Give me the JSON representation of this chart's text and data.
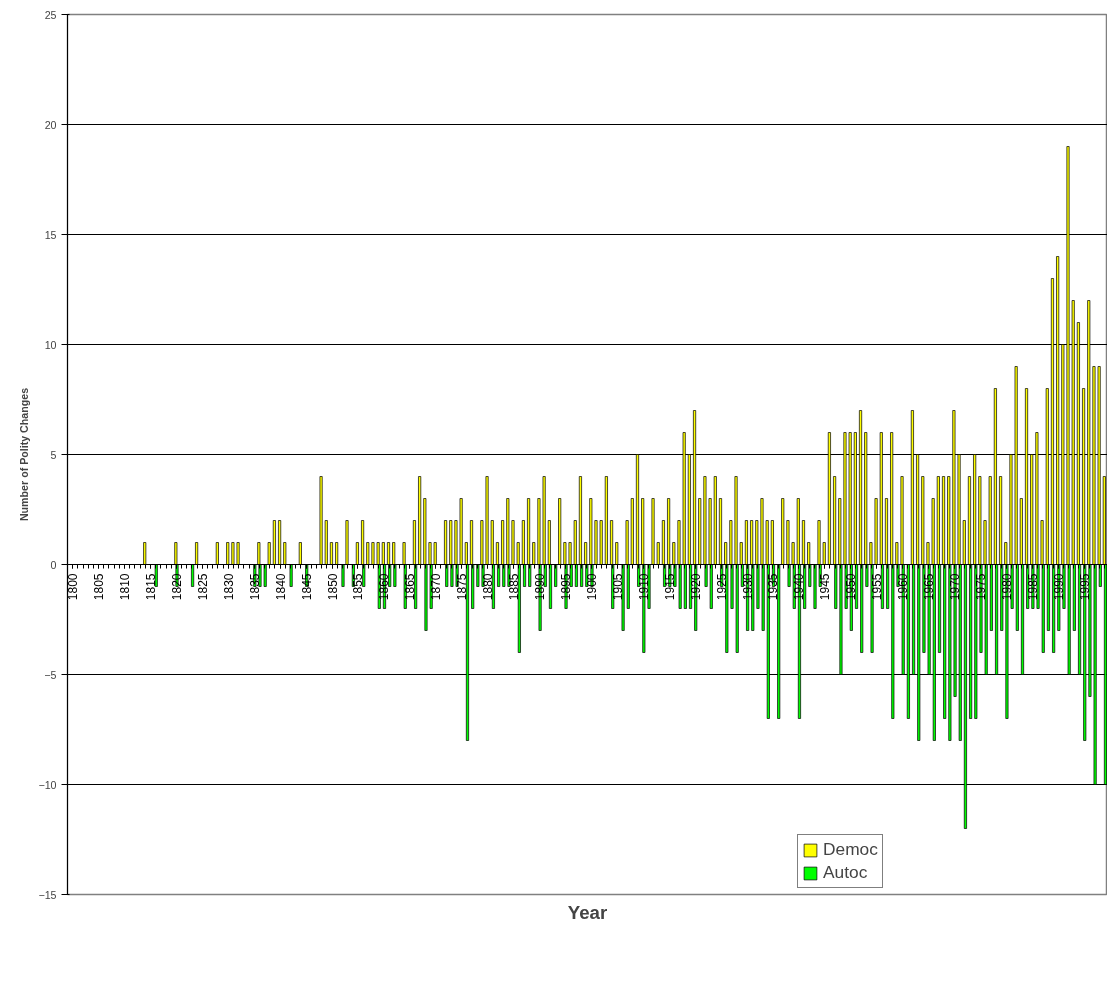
{
  "chart_data": {
    "type": "bar",
    "xlabel": "Year",
    "ylabel": "Number of Polity Changes",
    "xlim": [
      1799,
      1999.5
    ],
    "xticks": [
      1800,
      1805,
      1810,
      1815,
      1820,
      1825,
      1830,
      1835,
      1840,
      1845,
      1850,
      1855,
      1860,
      1865,
      1870,
      1875,
      1880,
      1885,
      1890,
      1895,
      1900,
      1905,
      1910,
      1915,
      1920,
      1925,
      1930,
      1935,
      1940,
      1945,
      1950,
      1955,
      1960,
      1965,
      1970,
      1975,
      1980,
      1985,
      1990,
      1995
    ],
    "ylim": [
      -15,
      25
    ],
    "yticks": [
      -15,
      -10,
      -5,
      0,
      5,
      10,
      15,
      20,
      25
    ],
    "grid": "y",
    "legend": "bottom",
    "series": [
      {
        "name": "Democ",
        "color": "#ffff00",
        "x": [
          1814,
          1820,
          1824,
          1828,
          1830,
          1831,
          1832,
          1836,
          1838,
          1839,
          1840,
          1841,
          1844,
          1848,
          1849,
          1850,
          1851,
          1853,
          1855,
          1856,
          1857,
          1858,
          1859,
          1860,
          1861,
          1862,
          1864,
          1866,
          1867,
          1868,
          1869,
          1870,
          1872,
          1873,
          1874,
          1875,
          1876,
          1877,
          1879,
          1880,
          1881,
          1882,
          1883,
          1884,
          1885,
          1886,
          1887,
          1888,
          1889,
          1890,
          1891,
          1892,
          1894,
          1895,
          1896,
          1897,
          1898,
          1899,
          1900,
          1901,
          1902,
          1903,
          1904,
          1905,
          1907,
          1908,
          1909,
          1910,
          1912,
          1913,
          1914,
          1915,
          1916,
          1917,
          1918,
          1919,
          1920,
          1921,
          1922,
          1923,
          1924,
          1925,
          1926,
          1927,
          1928,
          1929,
          1930,
          1931,
          1932,
          1933,
          1934,
          1935,
          1937,
          1938,
          1939,
          1940,
          1941,
          1942,
          1944,
          1945,
          1946,
          1947,
          1948,
          1949,
          1950,
          1951,
          1952,
          1953,
          1954,
          1955,
          1956,
          1957,
          1958,
          1959,
          1960,
          1962,
          1963,
          1964,
          1965,
          1966,
          1967,
          1968,
          1969,
          1970,
          1971,
          1972,
          1973,
          1974,
          1975,
          1976,
          1977,
          1978,
          1979,
          1980,
          1981,
          1982,
          1983,
          1984,
          1985,
          1986,
          1987,
          1988,
          1989,
          1990,
          1991,
          1992,
          1993,
          1994,
          1995,
          1996,
          1997,
          1998,
          1999
        ],
        "values": [
          1,
          1,
          1,
          1,
          1,
          1,
          1,
          1,
          1,
          2,
          2,
          1,
          1,
          4,
          2,
          1,
          1,
          2,
          1,
          2,
          1,
          1,
          1,
          1,
          1,
          1,
          1,
          2,
          4,
          3,
          1,
          1,
          2,
          2,
          2,
          3,
          1,
          2,
          2,
          4,
          2,
          1,
          2,
          3,
          2,
          1,
          2,
          3,
          1,
          3,
          4,
          2,
          3,
          1,
          1,
          2,
          4,
          1,
          3,
          2,
          2,
          4,
          2,
          1,
          2,
          3,
          5,
          3,
          3,
          1,
          2,
          3,
          1,
          2,
          6,
          5,
          7,
          3,
          4,
          3,
          4,
          3,
          1,
          2,
          4,
          1,
          2,
          2,
          2,
          3,
          2,
          2,
          3,
          2,
          1,
          3,
          2,
          1,
          2,
          1,
          6,
          4,
          3,
          6,
          6,
          6,
          7,
          6,
          1,
          3,
          6,
          3,
          6,
          1,
          4,
          7,
          5,
          4,
          1,
          3,
          4,
          4,
          4,
          7,
          5,
          2,
          4,
          5,
          4,
          2,
          4,
          8,
          4,
          1,
          5,
          9,
          3,
          8,
          5,
          6,
          2,
          8,
          13,
          14,
          10,
          19,
          12,
          11,
          8,
          12,
          9,
          9,
          4
        ]
      },
      {
        "name": "Autoc",
        "color": "#00ff00",
        "x": [
          1816,
          1820,
          1823,
          1835,
          1836,
          1837,
          1842,
          1845,
          1852,
          1854,
          1856,
          1859,
          1860,
          1861,
          1862,
          1864,
          1866,
          1868,
          1869,
          1872,
          1873,
          1874,
          1876,
          1877,
          1878,
          1879,
          1881,
          1882,
          1883,
          1884,
          1886,
          1887,
          1888,
          1890,
          1891,
          1892,
          1893,
          1895,
          1896,
          1897,
          1898,
          1899,
          1900,
          1904,
          1906,
          1907,
          1909,
          1910,
          1911,
          1914,
          1915,
          1916,
          1917,
          1918,
          1919,
          1920,
          1922,
          1923,
          1925,
          1926,
          1927,
          1928,
          1929,
          1930,
          1931,
          1932,
          1933,
          1934,
          1935,
          1936,
          1938,
          1939,
          1940,
          1941,
          1942,
          1943,
          1944,
          1947,
          1948,
          1949,
          1950,
          1951,
          1952,
          1953,
          1954,
          1956,
          1957,
          1958,
          1959,
          1960,
          1961,
          1962,
          1963,
          1964,
          1965,
          1966,
          1967,
          1968,
          1969,
          1970,
          1971,
          1972,
          1973,
          1974,
          1975,
          1976,
          1977,
          1978,
          1979,
          1980,
          1981,
          1982,
          1983,
          1984,
          1985,
          1986,
          1987,
          1988,
          1989,
          1990,
          1991,
          1992,
          1993,
          1994,
          1995,
          1996,
          1997,
          1998,
          1999
        ],
        "values": [
          -1,
          -1,
          -1,
          -1,
          -1,
          -1,
          -1,
          -1,
          -1,
          -1,
          -1,
          -2,
          -2,
          -1,
          -1,
          -2,
          -2,
          -3,
          -2,
          -1,
          -1,
          -1,
          -8,
          -2,
          -1,
          -1,
          -2,
          -1,
          -1,
          -1,
          -4,
          -1,
          -1,
          -3,
          -1,
          -2,
          -1,
          -2,
          -1,
          -1,
          -1,
          -1,
          -1,
          -2,
          -3,
          -2,
          -1,
          -4,
          -2,
          -1,
          -1,
          -1,
          -2,
          -2,
          -2,
          -3,
          -1,
          -2,
          -1,
          -4,
          -2,
          -4,
          -1,
          -3,
          -3,
          -2,
          -3,
          -7,
          -1,
          -7,
          -1,
          -2,
          -7,
          -2,
          -1,
          -2,
          -1,
          -2,
          -5,
          -2,
          -3,
          -2,
          -4,
          -1,
          -4,
          -2,
          -2,
          -7,
          -1,
          -5,
          -7,
          -5,
          -8,
          -4,
          -5,
          -8,
          -4,
          -7,
          -8,
          -6,
          -8,
          -12,
          -7,
          -7,
          -4,
          -5,
          -3,
          -5,
          -3,
          -7,
          -2,
          -3,
          -5,
          -2,
          -2,
          -2,
          -4,
          -3,
          -4,
          -3,
          -2,
          -5,
          -3,
          -5,
          -8,
          -6,
          -10,
          -1,
          -10
        ]
      }
    ]
  }
}
